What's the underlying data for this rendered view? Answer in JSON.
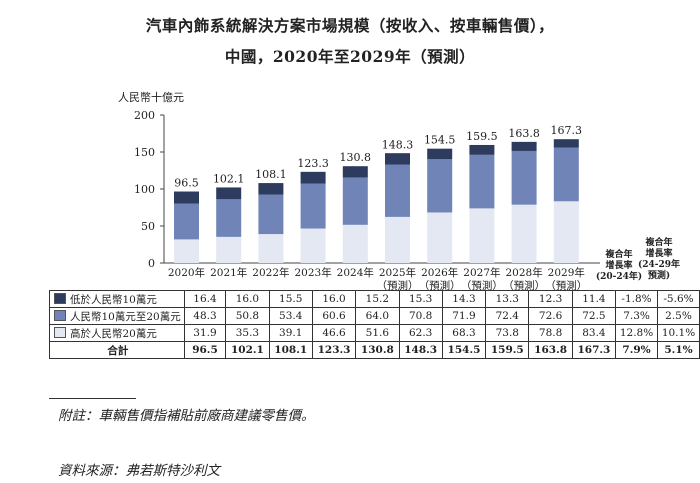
{
  "title_line1": "汽車內飾系統解決方案市場規模（按收入、按車輛售價），",
  "title_line2": "中國，2020年至2029年（預測）",
  "chart_data": {
    "type": "bar",
    "stacked": true,
    "unit_label": "人民幣十億元",
    "ylim": [
      0,
      200
    ],
    "yticks": [
      0,
      50,
      100,
      150,
      200
    ],
    "categories": [
      "2020年",
      "2021年",
      "2022年",
      "2023年",
      "2024年",
      "2025年",
      "2026年",
      "2027年",
      "2028年",
      "2029年"
    ],
    "forecast_note": "（預測）",
    "forecast_from_index": 5,
    "totals": [
      96.5,
      102.1,
      108.1,
      123.3,
      130.8,
      148.3,
      154.5,
      159.5,
      163.8,
      167.3
    ],
    "series": [
      {
        "name": "高於人民幣20萬元",
        "color": "#e4e8f2",
        "values": [
          31.9,
          35.3,
          39.1,
          46.6,
          51.6,
          62.3,
          68.3,
          73.8,
          78.8,
          83.4
        ]
      },
      {
        "name": "人民幣10萬元至20萬元",
        "color": "#7084b8",
        "values": [
          48.3,
          50.8,
          53.4,
          60.6,
          64.0,
          70.8,
          71.9,
          72.4,
          72.6,
          72.5
        ]
      },
      {
        "name": "低於人民幣10萬元",
        "color": "#2c3b5e",
        "values": [
          16.4,
          16.0,
          15.5,
          16.0,
          15.2,
          15.3,
          14.3,
          13.3,
          12.3,
          11.4
        ]
      }
    ]
  },
  "cagr_header_1": {
    "line1": "複合年",
    "line2": "增長率",
    "line3": "(20-24年)"
  },
  "cagr_header_2": {
    "line1": "複合年",
    "line2": "增長率",
    "line3": "(24-29年",
    "line4": "預測)"
  },
  "table": {
    "rows": [
      {
        "label": "低於人民幣10萬元",
        "color": "#2c3b5e",
        "values": [
          "16.4",
          "16.0",
          "15.5",
          "16.0",
          "15.2",
          "15.3",
          "14.3",
          "13.3",
          "12.3",
          "11.4"
        ],
        "cagr1": "-1.8%",
        "cagr2": "-5.6%"
      },
      {
        "label": "人民幣10萬元至20萬元",
        "color": "#7084b8",
        "values": [
          "48.3",
          "50.8",
          "53.4",
          "60.6",
          "64.0",
          "70.8",
          "71.9",
          "72.4",
          "72.6",
          "72.5"
        ],
        "cagr1": "7.3%",
        "cagr2": "2.5%"
      },
      {
        "label": "高於人民幣20萬元",
        "color": "#e4e8f2",
        "values": [
          "31.9",
          "35.3",
          "39.1",
          "46.6",
          "51.6",
          "62.3",
          "68.3",
          "73.8",
          "78.8",
          "83.4"
        ],
        "cagr1": "12.8%",
        "cagr2": "10.1%"
      }
    ],
    "total": {
      "label": "合計",
      "values": [
        "96.5",
        "102.1",
        "108.1",
        "123.3",
        "130.8",
        "148.3",
        "154.5",
        "159.5",
        "163.8",
        "167.3"
      ],
      "cagr1": "7.9%",
      "cagr2": "5.1%"
    }
  },
  "footnote": "附註：車輛售價指補貼前廠商建議零售價。",
  "source": "資料來源：弗若斯特沙利文"
}
